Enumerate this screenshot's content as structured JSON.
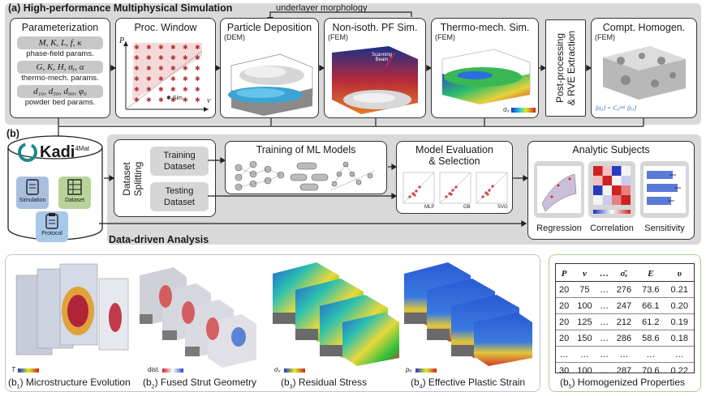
{
  "section_a": {
    "title": "(a) High-performance Multiphysical Simulation",
    "underlayer": "underlayer morphology",
    "param": {
      "title": "Parameterization",
      "rows": [
        {
          "symbols": "M, K, L, f, κ",
          "label": "phase-field params."
        },
        {
          "symbols": "G, K, H, σᵧ, α",
          "label": "thermo-mech. params."
        },
        {
          "symbols": "d₁₀, d₅₀, d₉₀, φ₀",
          "label": "powder bed params."
        }
      ]
    },
    "proc": {
      "title": "Proc. Window",
      "p_axis": "P",
      "v_axis": "v",
      "legend": "Sim."
    },
    "particle": {
      "title": "Particle Deposition",
      "sub": "(DEM)"
    },
    "pf": {
      "title": "Non-isoth. PF Sim.",
      "sub": "(FEM)",
      "beam": "Scanning\nBeam",
      "p": "P"
    },
    "thermo": {
      "title": "Thermo-mech. Sim.",
      "sub": "(FEM)",
      "sigma": "σᵥ"
    },
    "post": {
      "text": "Post-processing\n& RVE Extraction"
    },
    "homog": {
      "title": "Compt. Homogen.",
      "sub": "(FEM)",
      "formula": "⟨σᵢⱼ⟩ = Cᵢⱼᵈᵉˡˡ ⟨εᵢⱼ⟩"
    }
  },
  "section_b": {
    "label": "(b)",
    "kadi": {
      "name": "Kadi",
      "sup": "4Mat"
    },
    "db_items": [
      "Simulation",
      "Dataset",
      "Protocol"
    ],
    "splitting": "Dataset\nSplitting",
    "training_dataset": "Training\nDataset",
    "testing_dataset": "Testing\nDataset",
    "training_models": "Training of ML Models",
    "evaluation": "Model Evaluation\n& Selection",
    "eval_models": [
      "MLP",
      "GB",
      "SVG"
    ],
    "analytic_title": "Analytic Subjects",
    "analytic_items": [
      "Regression",
      "Correlation",
      "Sensitivity"
    ],
    "data_driven": "Data-driven Analysis"
  },
  "bottom": {
    "captions": [
      {
        "sub": "1",
        "text": "Microstructure Evolution"
      },
      {
        "sub": "2",
        "text": "Fused Strut Geometry"
      },
      {
        "sub": "3",
        "text": "Residual Stress"
      },
      {
        "sub": "4",
        "text": "Effective Plastic Strain"
      }
    ],
    "scale_labels": [
      "T",
      "dist.",
      "σᵥ",
      "pₑ"
    ],
    "props_caption": {
      "sub": "5",
      "text": "Homogenized Properties"
    },
    "table": {
      "headers": [
        "P",
        "v",
        "…",
        "σ̄ₑ",
        "E",
        "υ"
      ],
      "rows": [
        [
          "20",
          "75",
          "…",
          "276",
          "73.6",
          "0.21"
        ],
        [
          "20",
          "100",
          "…",
          "247",
          "66.1",
          "0.20"
        ],
        [
          "20",
          "125",
          "…",
          "212",
          "61.2",
          "0.19"
        ],
        [
          "20",
          "150",
          "…",
          "286",
          "58.6",
          "0.18"
        ],
        [
          "…",
          "…",
          "…",
          "…",
          "…",
          "…"
        ],
        [
          "30",
          "100",
          "…",
          "287",
          "70.6",
          "0.22"
        ]
      ]
    }
  }
}
